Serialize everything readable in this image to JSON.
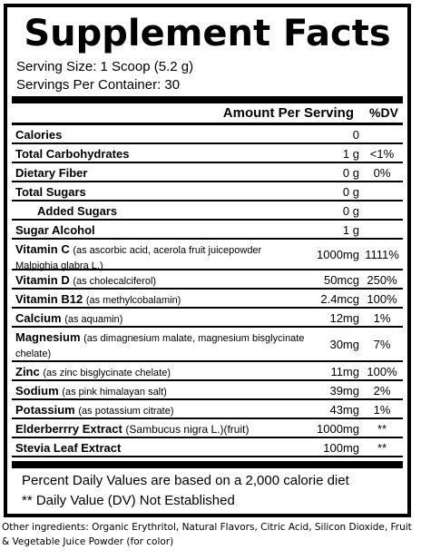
{
  "title": "Supplement Facts",
  "serving_size": "Serving Size: 1 Scoop (5.2 g)",
  "servings_per_container": "Servings Per Container: 30",
  "header": {
    "amount": "Amount Per Serving",
    "dv": "%DV"
  },
  "rows": [
    {
      "name": "Calories",
      "desc": "",
      "amount": "0",
      "dv": ""
    },
    {
      "name": "Total Carbohydrates",
      "desc": "",
      "amount": "1 g",
      "dv": "<1%"
    },
    {
      "name": "Dietary Fiber",
      "desc": "",
      "amount": "0 g",
      "dv": "0%"
    },
    {
      "name": "Total Sugars",
      "desc": "",
      "amount": "0 g",
      "dv": ""
    },
    {
      "name": "Added Sugars",
      "desc": "",
      "amount": "0 g",
      "dv": ""
    },
    {
      "name": "Sugar Alcohol",
      "desc": "",
      "amount": "1 g",
      "dv": ""
    },
    {
      "name": "Vitamin C",
      "desc": "(as ascorbic acid, acerola fruit juicepowder Malpighia glabra L.)",
      "amount": "1000mg",
      "dv": "1111%"
    },
    {
      "name": "Vitamin D",
      "desc": "(as cholecalciferol)",
      "amount": "50mcg",
      "dv": "250%"
    },
    {
      "name": "Vitamin B12",
      "desc": "(as methylcobalamin)",
      "amount": "2.4mcg",
      "dv": "100%"
    },
    {
      "name": "Calcium",
      "desc": "(as aquamin)",
      "amount": "12mg",
      "dv": "1%"
    },
    {
      "name": "Magnesium",
      "desc": "(as dimagnesium malate, magnesium bisglycinate chelate)",
      "amount": "30mg",
      "dv": "7%"
    },
    {
      "name": "Zinc",
      "desc": "(as zinc bisglycinate chelate)",
      "amount": "11mg",
      "dv": "100%"
    },
    {
      "name": "Sodium",
      "desc": "(as pink himalayan salt)",
      "amount": "39mg",
      "dv": "2%"
    },
    {
      "name": "Potassium",
      "desc": "(as potassium citrate)",
      "amount": "43mg",
      "dv": "1%"
    },
    {
      "name": "Elderberrry Extract",
      "desc": "(Sambucus nigra L.)(fruit)",
      "amount": "1000mg",
      "dv": "**"
    },
    {
      "name": "Stevia Leaf Extract",
      "desc": "",
      "amount": "100mg",
      "dv": "**"
    }
  ],
  "footnote_1": "Percent Daily Values are based on a 2,000 calorie diet",
  "footnote_2": "** Daily Value (DV) Not Established",
  "other_ingredients": "Other ingredients: Organic Erythritol, Natural Flavors, Citric Acid, Silicon Dioxide, Fruit & Vegetable Juice Powder (for color)"
}
